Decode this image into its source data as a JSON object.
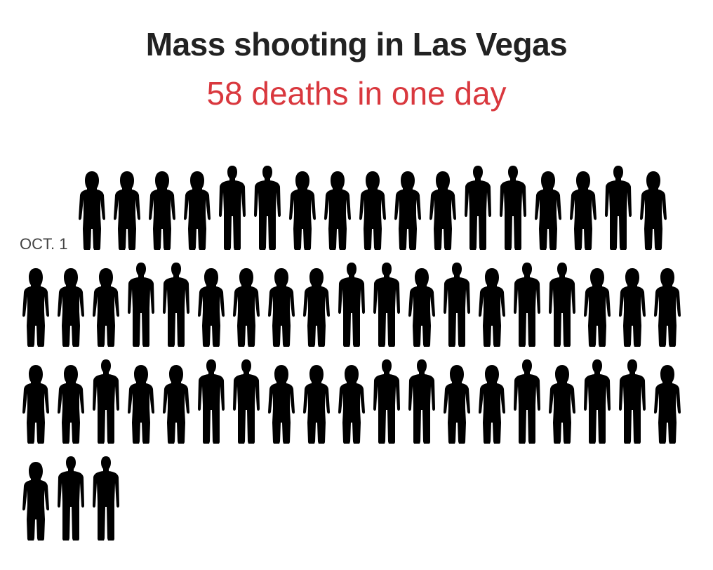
{
  "header": {
    "title": "Mass shooting in Las Vegas",
    "subtitle": "58 deaths in one day"
  },
  "colors": {
    "title": "#222222",
    "subtitle": "#d9383e",
    "figure": "#000000"
  },
  "chart_data": {
    "type": "pictogram",
    "title": "Mass shooting in Las Vegas",
    "subtitle": "58 deaths in one day",
    "categories": [
      "OCT. 1"
    ],
    "values": [
      58
    ],
    "unit": "deaths",
    "icon": "person-silhouette-icon",
    "icons_per_row": 19,
    "figure_genders": "FFFFMMFFFFFMMFFMFFFFMMFFFFMMFMFMMFFFFFMFFMMFFFMMFFMFMMFFMM"
  }
}
